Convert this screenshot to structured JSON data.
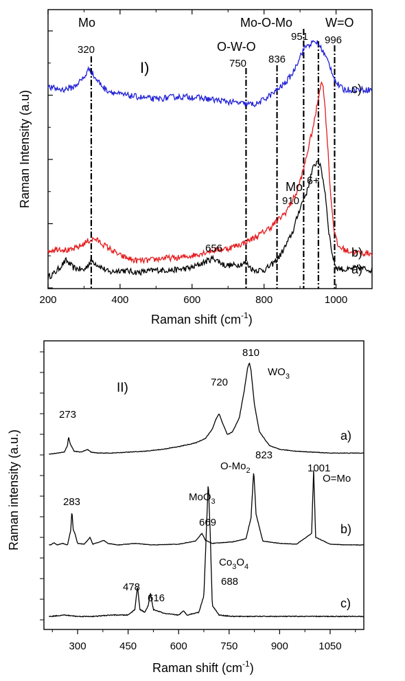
{
  "chart_data": [
    {
      "type": "line",
      "panel_label": "I)",
      "xlabel": "Raman shift (cm",
      "xlabel_sup": "-1",
      "xlabel_close": ")",
      "ylabel": "Raman Intensity (a.u)",
      "xlim": [
        200,
        1100
      ],
      "x_ticks": [
        200,
        400,
        600,
        800,
        1000
      ],
      "colors": {
        "a": "#000000",
        "b": "#e41a1c",
        "c": "#1f1fd6"
      },
      "series": [
        {
          "id": "a",
          "label": "a)",
          "color": "#000000",
          "x": [
            200,
            220,
            250,
            270,
            300,
            320,
            340,
            370,
            400,
            450,
            500,
            550,
            600,
            630,
            660,
            690,
            720,
            750,
            770,
            800,
            820,
            840,
            860,
            880,
            900,
            920,
            935,
            950,
            960,
            970,
            980,
            990,
            1000,
            1030,
            1060,
            1100
          ],
          "y": [
            0.01,
            0.03,
            0.08,
            0.05,
            0.04,
            0.08,
            0.06,
            0.03,
            0.04,
            0.03,
            0.04,
            0.04,
            0.05,
            0.07,
            0.09,
            0.06,
            0.06,
            0.07,
            0.04,
            0.04,
            0.06,
            0.09,
            0.14,
            0.2,
            0.3,
            0.37,
            0.46,
            0.5,
            0.45,
            0.36,
            0.2,
            0.1,
            0.05,
            0.04,
            0.05,
            0.04
          ]
        },
        {
          "id": "b",
          "label": "b)",
          "color": "#e41a1c",
          "x": [
            200,
            230,
            260,
            290,
            310,
            330,
            360,
            400,
            440,
            480,
            520,
            560,
            600,
            650,
            700,
            740,
            780,
            820,
            860,
            890,
            910,
            925,
            940,
            950,
            958,
            965,
            975,
            985,
            995,
            1005,
            1030,
            1070,
            1100
          ],
          "y": [
            0.12,
            0.13,
            0.12,
            0.14,
            0.16,
            0.17,
            0.14,
            0.1,
            0.08,
            0.08,
            0.09,
            0.09,
            0.1,
            0.12,
            0.13,
            0.15,
            0.18,
            0.22,
            0.28,
            0.36,
            0.46,
            0.56,
            0.66,
            0.75,
            0.82,
            0.8,
            0.6,
            0.35,
            0.2,
            0.14,
            0.12,
            0.11,
            0.11
          ]
        },
        {
          "id": "c",
          "label": "c)",
          "color": "#1f1fd6",
          "x": [
            200,
            240,
            270,
            300,
            315,
            330,
            360,
            400,
            450,
            500,
            550,
            600,
            650,
            700,
            750,
            780,
            800,
            830,
            860,
            880,
            900,
            915,
            930,
            945,
            960,
            980,
            1000,
            1020,
            1060,
            1100
          ],
          "y": [
            0.8,
            0.79,
            0.8,
            0.84,
            0.88,
            0.84,
            0.79,
            0.77,
            0.76,
            0.75,
            0.76,
            0.76,
            0.75,
            0.74,
            0.73,
            0.73,
            0.75,
            0.78,
            0.82,
            0.86,
            0.93,
            0.97,
            0.98,
            0.99,
            0.96,
            0.9,
            0.82,
            0.79,
            0.79,
            0.79
          ]
        }
      ],
      "ref_lines": [
        {
          "x": 320,
          "label": "320",
          "group": "Mo"
        },
        {
          "x": 750,
          "label": "750",
          "group": "O-W-O"
        },
        {
          "x": 836,
          "label": "836",
          "group": ""
        },
        {
          "x": 910,
          "label": "910",
          "group": "Mo"
        },
        {
          "x": 951,
          "label": "951",
          "group": "Mo-O-Mo"
        },
        {
          "x": 996,
          "label": "996",
          "group": "W=O"
        }
      ],
      "annotations": {
        "mo": "Mo",
        "owo": "O-W-O",
        "momomo": "Mo-O-Mo",
        "wo": "W=O",
        "mo6": "Mo",
        "mo6_sup": "6+",
        "peak656": "656"
      }
    },
    {
      "type": "line",
      "panel_label": "II)",
      "xlabel": "Raman shift (cm",
      "xlabel_sup": "-1",
      "xlabel_close": ")",
      "ylabel": "Raman intensity (a.u.)",
      "xlim": [
        200,
        1150
      ],
      "x_ticks": [
        300,
        450,
        600,
        750,
        900,
        1050
      ],
      "series": [
        {
          "id": "a",
          "label": "a)",
          "color": "#000000",
          "x": [
            220,
            240,
            260,
            270,
            273,
            278,
            290,
            310,
            330,
            340,
            360,
            400,
            450,
            500,
            550,
            600,
            650,
            680,
            700,
            710,
            720,
            730,
            745,
            760,
            780,
            795,
            805,
            810,
            815,
            825,
            840,
            870,
            900,
            950,
            1000,
            1050,
            1100,
            1150
          ],
          "y": [
            0.01,
            0.02,
            0.03,
            0.1,
            0.2,
            0.12,
            0.04,
            0.03,
            0.06,
            0.03,
            0.02,
            0.02,
            0.03,
            0.04,
            0.06,
            0.09,
            0.13,
            0.18,
            0.28,
            0.38,
            0.45,
            0.35,
            0.22,
            0.25,
            0.4,
            0.7,
            0.95,
            1.0,
            0.92,
            0.55,
            0.25,
            0.1,
            0.06,
            0.04,
            0.03,
            0.02,
            0.02,
            0.02
          ]
        },
        {
          "id": "b",
          "label": "b)",
          "color": "#000000",
          "x": [
            220,
            230,
            240,
            255,
            270,
            280,
            283,
            287,
            292,
            300,
            320,
            337,
            345,
            360,
            378,
            390,
            420,
            470,
            520,
            600,
            650,
            669,
            680,
            700,
            760,
            800,
            815,
            823,
            830,
            850,
            900,
            950,
            995,
            1001,
            1007,
            1050,
            1100,
            1150
          ],
          "y": [
            0.0,
            0.03,
            0.0,
            0.02,
            0.0,
            0.2,
            0.45,
            0.2,
            0.15,
            0.02,
            0.01,
            0.1,
            0.01,
            0.03,
            0.06,
            0.02,
            0.0,
            0.02,
            0.0,
            0.01,
            0.05,
            0.15,
            0.06,
            0.02,
            0.04,
            0.08,
            0.35,
            0.97,
            0.4,
            0.05,
            0.02,
            0.01,
            0.15,
            0.97,
            0.1,
            0.01,
            0.0,
            0.0
          ]
        },
        {
          "id": "c",
          "label": "c)",
          "color": "#000000",
          "x": [
            220,
            260,
            300,
            350,
            400,
            450,
            470,
            478,
            485,
            500,
            510,
            516,
            525,
            560,
            600,
            615,
            625,
            660,
            675,
            682,
            688,
            694,
            700,
            720,
            760,
            800,
            900,
            1000,
            1100,
            1150
          ],
          "y": [
            0.0,
            0.01,
            0.0,
            0.0,
            0.01,
            0.01,
            0.05,
            0.22,
            0.05,
            0.03,
            0.08,
            0.17,
            0.05,
            0.02,
            0.01,
            0.04,
            0.01,
            0.03,
            0.15,
            0.6,
            0.98,
            0.6,
            0.08,
            0.01,
            0.0,
            0.0,
            0.0,
            0.0,
            0.0,
            0.0
          ]
        }
      ],
      "peak_labels": [
        {
          "text": "273"
        },
        {
          "text": "720"
        },
        {
          "text": "810"
        },
        {
          "text": "283"
        },
        {
          "text": "669"
        },
        {
          "text": "823"
        },
        {
          "text": "1001"
        },
        {
          "text": "478"
        },
        {
          "text": "616"
        },
        {
          "text": "688"
        }
      ],
      "annotations": {
        "wo3_main": "WO",
        "wo3_sub": "3",
        "omo2_main": "O-Mo",
        "omo2_sub": "2",
        "omo": "O=Mo",
        "moo3_main": "MoO",
        "moo3_sub": "3",
        "co3o4_a": "Co",
        "co3o4_b": "3",
        "co3o4_c": "O",
        "co3o4_d": "4"
      }
    }
  ]
}
